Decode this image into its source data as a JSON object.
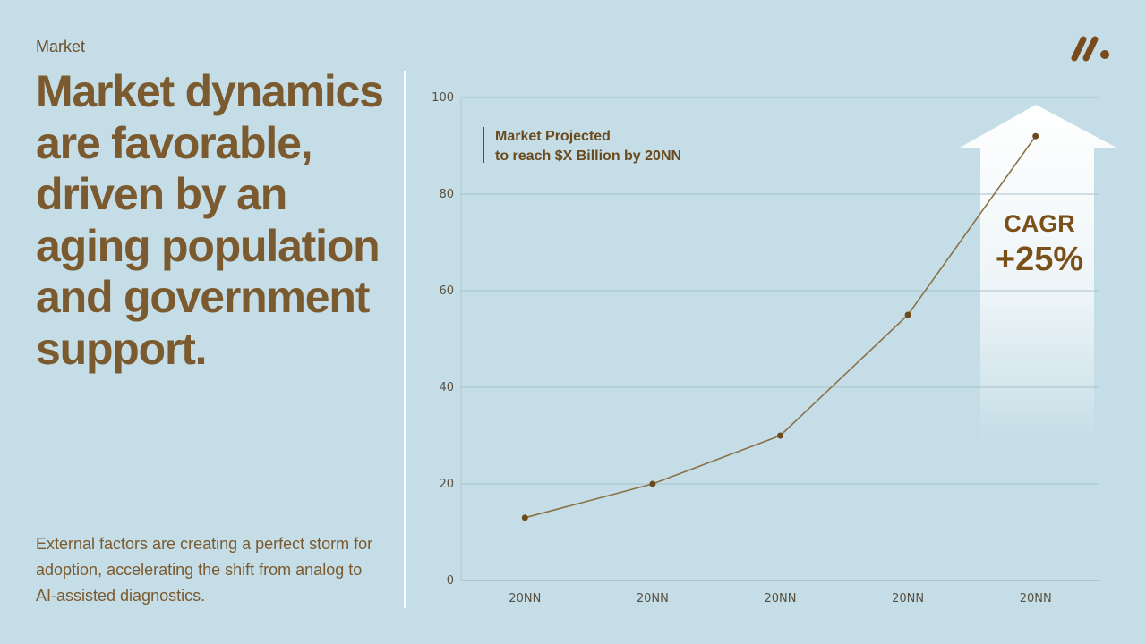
{
  "eyebrow": "Market",
  "headline": "Market dynamics are favorable, driven by an aging population and government support.",
  "subtext": "External factors are creating a perfect storm for adoption, accelerating the shift from analog to AI-assisted diagnostics.",
  "logo_icon": "brand-logo-icon",
  "colors": {
    "background": "#c4dde6",
    "headline": "#7a5a2e",
    "line": "#8a7148",
    "point": "#6b4a1e",
    "grid": "#a8c3cd",
    "arrow": "#ffffff"
  },
  "chart_data": {
    "type": "line",
    "categories": [
      "20NN",
      "20NN",
      "20NN",
      "20NN",
      "20NN"
    ],
    "values": [
      13,
      20,
      30,
      55,
      92
    ],
    "ylim": [
      0,
      100
    ],
    "yticks": [
      0,
      20,
      40,
      60,
      80,
      100
    ],
    "grid": true,
    "annotation": {
      "line1": "Market Projected",
      "line2": "to reach $X Billion by 20NN"
    },
    "cagr": {
      "label": "CAGR",
      "value": "+25%"
    }
  }
}
